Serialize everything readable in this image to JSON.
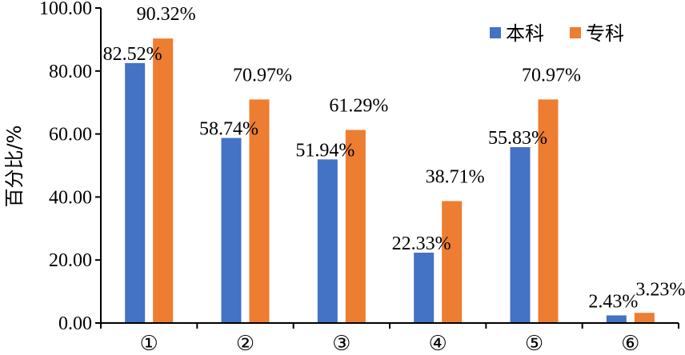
{
  "chart_data": {
    "type": "bar",
    "categories": [
      "①",
      "②",
      "③",
      "④",
      "⑤",
      "⑥"
    ],
    "series": [
      {
        "name": "本科",
        "color": "#4472C4",
        "values": [
          82.52,
          58.74,
          51.94,
          22.33,
          55.83,
          2.43
        ]
      },
      {
        "name": "专科",
        "color": "#ED7D31",
        "values": [
          90.32,
          70.97,
          61.29,
          38.71,
          70.97,
          3.23
        ]
      }
    ],
    "data_labels": [
      [
        "82.52%",
        "58.74%",
        "51.94%",
        "22.33%",
        "55.83%",
        "2.43%"
      ],
      [
        "90.32%",
        "70.97%",
        "61.29%",
        "38.71%",
        "70.97%",
        "3.23%"
      ]
    ],
    "yticks": [
      "0.00",
      "20.00",
      "40.00",
      "60.00",
      "80.00",
      "100.00"
    ],
    "ylim": [
      0,
      100
    ],
    "ylabel": "百分比/%",
    "xlabel": "",
    "legend_position": "top-right",
    "grid": false
  }
}
